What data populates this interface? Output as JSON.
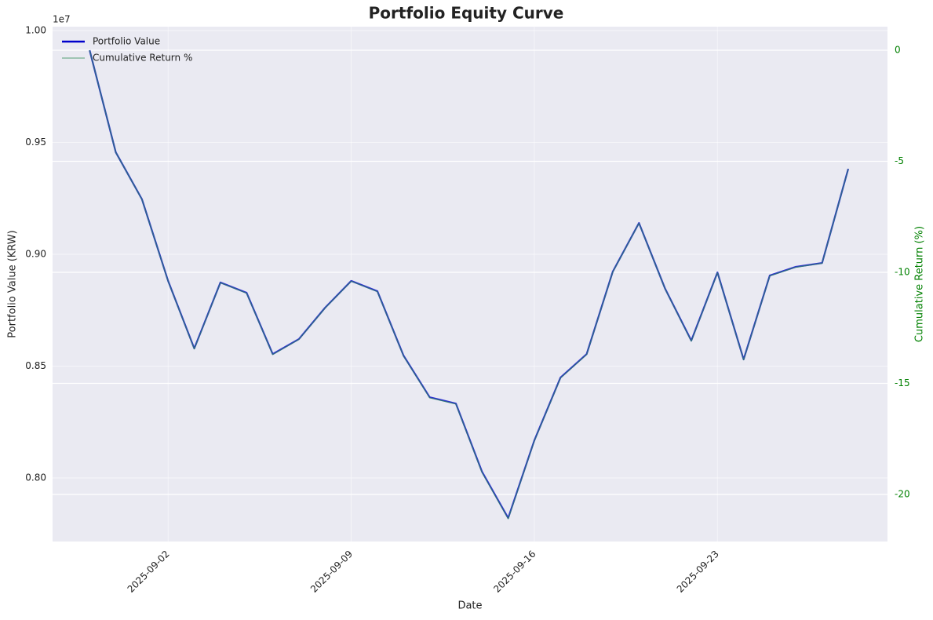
{
  "chart_data": {
    "type": "line",
    "title": "Portfolio Equity Curve",
    "xlabel": "Date",
    "ylabel": "Portfolio Value (KRW)",
    "y2label": "Cumulative Return (%)",
    "y_offset_label": "1e7",
    "x": [
      "2025-08-30",
      "2025-08-31",
      "2025-09-01",
      "2025-09-02",
      "2025-09-03",
      "2025-09-04",
      "2025-09-05",
      "2025-09-06",
      "2025-09-07",
      "2025-09-08",
      "2025-09-09",
      "2025-09-10",
      "2025-09-11",
      "2025-09-12",
      "2025-09-13",
      "2025-09-14",
      "2025-09-15",
      "2025-09-16",
      "2025-09-17",
      "2025-09-18",
      "2025-09-19",
      "2025-09-20",
      "2025-09-21",
      "2025-09-22",
      "2025-09-23",
      "2025-09-24",
      "2025-09-25",
      "2025-09-26",
      "2025-09-27",
      "2025-09-28"
    ],
    "series": [
      {
        "name": "Portfolio Value",
        "color": "#0000cc",
        "axis": "y",
        "values": [
          9912000,
          9456000,
          9246000,
          8881000,
          8579000,
          8874000,
          8828000,
          8554000,
          8621000,
          8761000,
          8881000,
          8835000,
          8547000,
          8361000,
          8333000,
          8028000,
          7821000,
          8168000,
          8449000,
          8554000,
          8923000,
          9140000,
          8846000,
          8614000,
          8919000,
          8530000,
          8905000,
          8944000,
          8961000,
          9382000
        ]
      },
      {
        "name": "Cumulative Return %",
        "color": "#2e8b57",
        "axis": "y2",
        "values": [
          0,
          -4.6,
          -6.72,
          -10.4,
          -13.45,
          -10.47,
          -10.94,
          -13.7,
          -13.02,
          -11.61,
          -10.4,
          -10.87,
          -13.77,
          -15.65,
          -15.93,
          -19.01,
          -21.1,
          -17.59,
          -14.76,
          -13.7,
          -9.98,
          -7.79,
          -10.75,
          -13.1,
          -10.02,
          -13.94,
          -10.16,
          -9.77,
          -9.59,
          -5.35
        ]
      }
    ],
    "xlim": [
      "2025-08-28T14:00",
      "2025-09-29T12:00"
    ],
    "xticks": [
      "2025-09-02",
      "2025-09-09",
      "2025-09-16",
      "2025-09-23"
    ],
    "ylim": [
      7716000,
      10017500
    ],
    "yticks": [
      {
        "value": 8000000,
        "label": "0.80"
      },
      {
        "value": 8500000,
        "label": "0.85"
      },
      {
        "value": 9000000,
        "label": "0.90"
      },
      {
        "value": 9500000,
        "label": "0.95"
      },
      {
        "value": 10000000,
        "label": "1.00"
      }
    ],
    "y2lim": [
      -22.12,
      1.06
    ],
    "y2ticks": [
      -20,
      -15,
      -10,
      -5,
      0
    ],
    "y2_color": "#008000",
    "grid": true,
    "legend": "upper-left"
  }
}
